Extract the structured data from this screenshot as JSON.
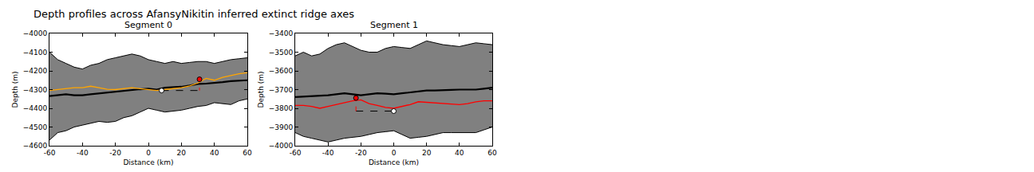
{
  "title": "Depth profiles across AfansyNikitin inferred extinct ridge axes",
  "chart_data": [
    {
      "type": "line",
      "title": "Segment 0",
      "x_label": "Distance (km)",
      "y_label": "Depth (m)",
      "xlim": [
        -60,
        60
      ],
      "xticks": [
        -60,
        -40,
        -20,
        0,
        20,
        40,
        60
      ],
      "ylim": [
        -4600,
        -4000
      ],
      "yticks": [
        -4600,
        -4500,
        -4400,
        -4300,
        -4200,
        -4100,
        -4000
      ],
      "grid": false,
      "x": [
        -60,
        -55,
        -50,
        -45,
        -40,
        -35,
        -30,
        -25,
        -20,
        -15,
        -10,
        -5,
        0,
        5,
        10,
        15,
        20,
        25,
        30,
        35,
        40,
        45,
        50,
        55,
        60
      ],
      "band": {
        "color": "gray",
        "upper": [
          -4100,
          -4140,
          -4160,
          -4180,
          -4190,
          -4170,
          -4160,
          -4140,
          -4130,
          -4120,
          -4110,
          -4120,
          -4140,
          -4150,
          -4160,
          -4150,
          -4160,
          -4155,
          -4150,
          -4150,
          -4160,
          -4150,
          -4140,
          -4135,
          -4130
        ],
        "lower": [
          -4570,
          -4530,
          -4520,
          -4500,
          -4490,
          -4480,
          -4470,
          -4475,
          -4470,
          -4450,
          -4440,
          -4420,
          -4400,
          -4410,
          -4420,
          -4415,
          -4410,
          -4400,
          -4390,
          -4385,
          -4370,
          -4375,
          -4380,
          -4360,
          -4350
        ]
      },
      "series": [
        {
          "color": "black",
          "line_style": "solid",
          "values": [
            -4335,
            -4330,
            -4325,
            -4330,
            -4330,
            -4325,
            -4320,
            -4315,
            -4310,
            -4305,
            -4300,
            -4298,
            -4295,
            -4300,
            -4290,
            -4288,
            -4285,
            -4278,
            -4270,
            -4268,
            -4265,
            -4260,
            -4255,
            -4252,
            -4250
          ]
        },
        {
          "color": "orange",
          "line_style": "solid",
          "values": [
            -4305,
            -4300,
            -4295,
            -4290,
            -4290,
            -4282,
            -4290,
            -4298,
            -4300,
            -4295,
            -4290,
            -4295,
            -4300,
            -4305,
            -4300,
            -4295,
            -4290,
            -4280,
            -4265,
            -4240,
            -4250,
            -4235,
            -4225,
            -4215,
            -4210
          ]
        }
      ],
      "markers": [
        {
          "x": 31,
          "y": -4245,
          "color": "red"
        },
        {
          "x": 8,
          "y": -4305,
          "color": "white"
        }
      ],
      "segments": [
        {
          "x": [
            8,
            31
          ],
          "y": [
            -4305,
            -4305
          ],
          "color": "black",
          "line_style": "dash"
        },
        {
          "x": [
            31,
            31
          ],
          "y": [
            -4305,
            -4290
          ],
          "color": "red",
          "line_style": "dash"
        }
      ]
    },
    {
      "type": "line",
      "title": "Segment 1",
      "x_label": "Distance (km)",
      "y_label": "Depth (m)",
      "xlim": [
        -60,
        60
      ],
      "xticks": [
        -60,
        -40,
        -20,
        0,
        20,
        40,
        60
      ],
      "ylim": [
        -4000,
        -3400
      ],
      "yticks": [
        -4000,
        -3900,
        -3800,
        -3700,
        -3600,
        -3500,
        -3400
      ],
      "grid": false,
      "x": [
        -60,
        -55,
        -50,
        -45,
        -40,
        -35,
        -30,
        -25,
        -20,
        -15,
        -10,
        -5,
        0,
        5,
        10,
        15,
        20,
        25,
        30,
        35,
        40,
        45,
        50,
        55,
        60
      ],
      "band": {
        "color": "gray",
        "upper": [
          -3520,
          -3500,
          -3520,
          -3510,
          -3480,
          -3460,
          -3450,
          -3470,
          -3490,
          -3500,
          -3500,
          -3480,
          -3470,
          -3475,
          -3480,
          -3460,
          -3440,
          -3450,
          -3460,
          -3465,
          -3470,
          -3460,
          -3450,
          -3455,
          -3460
        ],
        "lower": [
          -3930,
          -3950,
          -3960,
          -3970,
          -3980,
          -3970,
          -3960,
          -3955,
          -3950,
          -3940,
          -3930,
          -3925,
          -3920,
          -3940,
          -3960,
          -3955,
          -3950,
          -3940,
          -3930,
          -3930,
          -3930,
          -3930,
          -3930,
          -3915,
          -3900
        ]
      },
      "series": [
        {
          "color": "black",
          "line_style": "solid",
          "values": [
            -3740,
            -3738,
            -3735,
            -3732,
            -3730,
            -3725,
            -3720,
            -3725,
            -3730,
            -3725,
            -3720,
            -3722,
            -3725,
            -3720,
            -3715,
            -3710,
            -3705,
            -3705,
            -3705,
            -3702,
            -3700,
            -3700,
            -3700,
            -3695,
            -3690
          ]
        },
        {
          "color": "red",
          "line_style": "solid",
          "values": [
            -3785,
            -3785,
            -3790,
            -3800,
            -3790,
            -3780,
            -3770,
            -3760,
            -3755,
            -3775,
            -3785,
            -3795,
            -3800,
            -3790,
            -3780,
            -3765,
            -3768,
            -3772,
            -3775,
            -3778,
            -3780,
            -3775,
            -3765,
            -3760,
            -3760
          ]
        }
      ],
      "markers": [
        {
          "x": -23,
          "y": -3745,
          "color": "red"
        },
        {
          "x": 0,
          "y": -3815,
          "color": "white"
        }
      ],
      "segments": [
        {
          "x": [
            -23,
            0
          ],
          "y": [
            -3815,
            -3815
          ],
          "color": "black",
          "line_style": "dash"
        },
        {
          "x": [
            -23,
            -23
          ],
          "y": [
            -3815,
            -3790
          ],
          "color": "red",
          "line_style": "dash"
        }
      ]
    }
  ]
}
